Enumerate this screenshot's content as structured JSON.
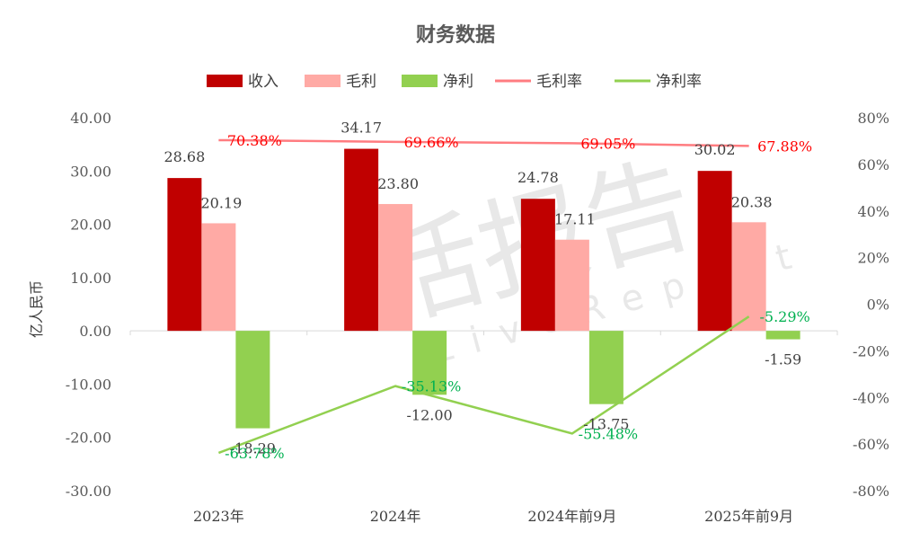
{
  "chart_data": {
    "type": "bar",
    "title": "财务数据",
    "ylabel": "亿人民币",
    "categories": [
      "2023年",
      "2024年",
      "2024年前9月",
      "2025年前9月"
    ],
    "ylim": [
      -30,
      40
    ],
    "y2lim": [
      -80,
      80
    ],
    "y_ticks": [
      "40.00",
      "30.00",
      "20.00",
      "10.00",
      "0.00",
      "-10.00",
      "-20.00",
      "-30.00"
    ],
    "y2_ticks": [
      "80%",
      "60%",
      "40%",
      "20%",
      "0%",
      "-20%",
      "-40%",
      "-60%",
      "-80%"
    ],
    "bar_series": [
      {
        "name": "收入",
        "color": "#c00000",
        "values": [
          28.68,
          34.17,
          24.78,
          30.02
        ],
        "labels": [
          "28.68",
          "34.17",
          "24.78",
          "30.02"
        ]
      },
      {
        "name": "毛利",
        "color": "#ffaaa5",
        "values": [
          20.19,
          23.8,
          17.11,
          20.38
        ],
        "labels": [
          "20.19",
          "23.80",
          "17.11",
          "20.38"
        ]
      },
      {
        "name": "净利",
        "color": "#92d050",
        "values": [
          -18.29,
          -12.0,
          -13.75,
          -1.59
        ],
        "labels": [
          "-18.29",
          "-12.00",
          "-13.75",
          "-1.59"
        ]
      }
    ],
    "line_series": [
      {
        "name": "毛利率",
        "color": "#ff7c80",
        "label_color": "#ff0000",
        "values": [
          70.38,
          69.66,
          69.05,
          67.88
        ],
        "labels": [
          "70.38%",
          "69.66%",
          "69.05%",
          "67.88%"
        ]
      },
      {
        "name": "净利率",
        "color": "#92d050",
        "label_color": "#00b050",
        "values": [
          -63.78,
          -35.13,
          -55.48,
          -5.29
        ],
        "labels": [
          "-63.78%",
          "-35.13%",
          "-55.48%",
          "-5.29%"
        ]
      }
    ],
    "legend_position": "top",
    "grid": false
  },
  "watermark": {
    "text": "活报告",
    "subtext": "LiveReport"
  }
}
